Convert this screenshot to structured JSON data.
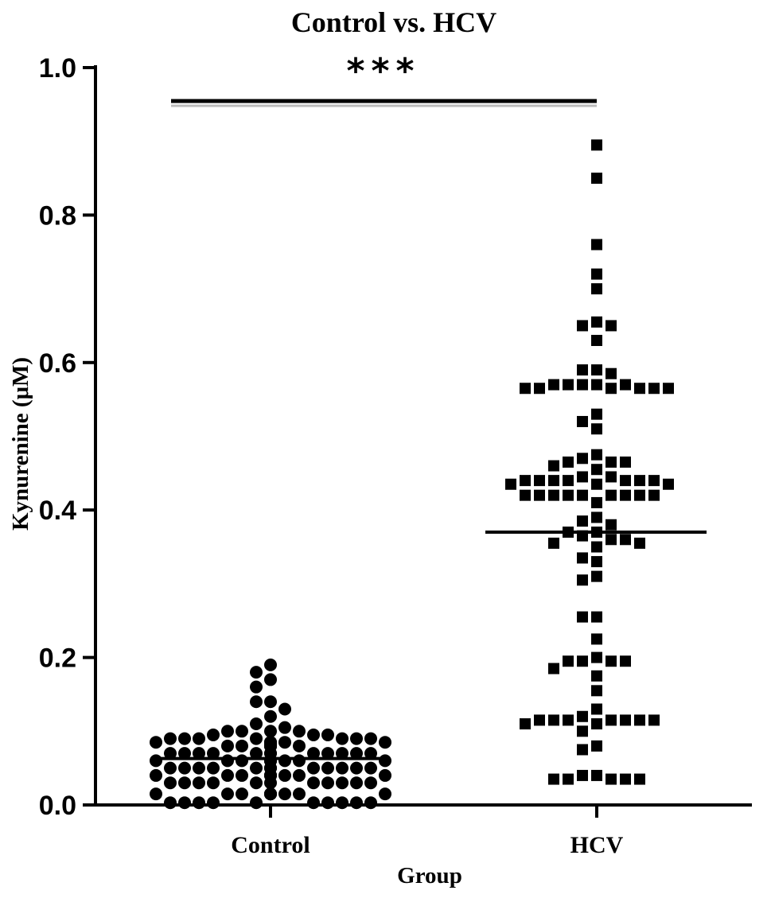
{
  "chart_data": {
    "type": "scatter",
    "title": "Control vs. HCV",
    "xlabel": "Group",
    "ylabel": "Kynurenine (μM)",
    "categories": [
      "Control",
      "HCV"
    ],
    "ylim": [
      0.0,
      1.0
    ],
    "yticks": [
      "0.0",
      "0.2",
      "0.4",
      "0.6",
      "0.8",
      "1.0"
    ],
    "grid": false,
    "significance": {
      "between": [
        "Control",
        "HCV"
      ],
      "label": "***"
    },
    "series": [
      {
        "category": "Control",
        "marker": "circle",
        "color": "#000000",
        "mean": 0.063,
        "values": [
          0.19,
          0.18,
          0.17,
          0.16,
          0.14,
          0.14,
          0.13,
          0.12,
          0.11,
          0.105,
          0.1,
          0.1,
          0.1,
          0.1,
          0.095,
          0.095,
          0.095,
          0.09,
          0.09,
          0.09,
          0.09,
          0.09,
          0.09,
          0.09,
          0.085,
          0.085,
          0.085,
          0.085,
          0.085,
          0.085,
          0.085,
          0.08,
          0.08,
          0.08,
          0.08,
          0.08,
          0.08,
          0.08,
          0.08,
          0.08,
          0.08,
          0.08,
          0.08,
          0.08,
          0.07,
          0.07,
          0.07,
          0.07,
          0.07,
          0.07,
          0.07,
          0.07,
          0.07,
          0.07,
          0.07,
          0.07,
          0.06,
          0.06,
          0.06,
          0.06,
          0.06,
          0.06,
          0.06,
          0.06,
          0.06,
          0.06,
          0.06,
          0.05,
          0.05,
          0.05,
          0.05,
          0.05,
          0.05,
          0.05,
          0.05,
          0.05,
          0.05,
          0.05,
          0.05,
          0.05,
          0.04,
          0.04,
          0.04,
          0.04,
          0.04,
          0.04,
          0.04,
          0.04,
          0.04,
          0.04,
          0.04,
          0.03,
          0.03,
          0.03,
          0.03,
          0.03,
          0.03,
          0.03,
          0.03,
          0.03,
          0.03,
          0.03,
          0.015,
          0.015,
          0.015,
          0.015,
          0.015,
          0.015,
          0.015,
          0.015,
          0.015,
          0.015,
          0.015,
          0.015,
          0.015,
          0.003,
          0.003,
          0.003,
          0.003,
          0.003,
          0.003,
          0.003,
          0.003,
          0.003,
          0.003
        ]
      },
      {
        "category": "HCV",
        "marker": "square",
        "color": "#000000",
        "mean": 0.37,
        "values": [
          0.895,
          0.85,
          0.76,
          0.72,
          0.7,
          0.655,
          0.65,
          0.65,
          0.63,
          0.59,
          0.59,
          0.585,
          0.57,
          0.57,
          0.57,
          0.57,
          0.57,
          0.565,
          0.565,
          0.565,
          0.565,
          0.565,
          0.565,
          0.53,
          0.52,
          0.51,
          0.475,
          0.47,
          0.465,
          0.465,
          0.465,
          0.46,
          0.455,
          0.445,
          0.445,
          0.44,
          0.44,
          0.44,
          0.44,
          0.44,
          0.44,
          0.44,
          0.435,
          0.435,
          0.435,
          0.42,
          0.42,
          0.42,
          0.42,
          0.42,
          0.42,
          0.42,
          0.42,
          0.42,
          0.41,
          0.39,
          0.385,
          0.38,
          0.37,
          0.37,
          0.365,
          0.36,
          0.36,
          0.355,
          0.355,
          0.35,
          0.335,
          0.33,
          0.31,
          0.305,
          0.255,
          0.255,
          0.225,
          0.2,
          0.195,
          0.195,
          0.195,
          0.195,
          0.185,
          0.175,
          0.155,
          0.13,
          0.12,
          0.115,
          0.115,
          0.115,
          0.115,
          0.115,
          0.115,
          0.115,
          0.11,
          0.11,
          0.1,
          0.08,
          0.075,
          0.04,
          0.04,
          0.035,
          0.035,
          0.035,
          0.035,
          0.035
        ]
      }
    ]
  }
}
